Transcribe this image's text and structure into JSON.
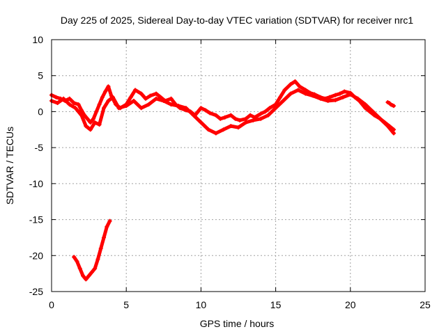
{
  "chart_data": {
    "type": "scatter",
    "title": "Day 225 of 2025, Sidereal Day-to-day VTEC variation (SDTVAR) for receiver nrc1",
    "xlabel": "GPS time / hours",
    "ylabel": "SDTVAR / TECUs",
    "xlim": [
      0,
      25
    ],
    "ylim": [
      -25,
      10
    ],
    "xticks": [
      "0",
      "5",
      "10",
      "15",
      "20",
      "25"
    ],
    "yticks": [
      "10",
      "5",
      "0",
      "-5",
      "-10",
      "-15",
      "-20",
      "-25"
    ],
    "grid": true,
    "marker": "+",
    "color": "#ff0000",
    "series": [
      {
        "name": "trace-upper",
        "x": [
          0.0,
          0.3,
          0.6,
          0.9,
          1.2,
          1.5,
          1.8,
          2.0,
          2.2,
          2.4,
          2.6,
          2.8,
          3.0,
          3.2,
          3.4,
          3.6,
          3.8,
          4.0,
          4.3,
          4.6,
          5.0,
          5.3,
          5.6,
          6.0,
          6.3,
          6.6,
          7.0,
          7.3,
          7.6,
          8.0,
          8.3,
          8.6,
          9.0,
          9.3,
          9.6,
          10.0,
          10.3,
          10.6,
          11.0,
          11.3,
          11.6,
          12.0,
          12.3,
          12.6,
          13.0,
          13.3,
          13.6,
          14.0,
          14.3,
          14.6,
          15.0,
          15.3,
          15.6,
          16.0,
          16.3,
          16.6,
          17.0,
          17.3,
          17.6,
          18.0,
          18.3,
          18.6,
          19.0,
          19.3,
          19.6,
          20.0,
          20.3,
          20.6,
          21.0,
          21.3,
          21.6,
          22.0,
          22.3,
          22.6,
          22.9
        ],
        "y": [
          2.3,
          2.0,
          1.8,
          1.5,
          1.8,
          1.2,
          1.0,
          0.2,
          -0.5,
          -1.0,
          -1.5,
          -1.0,
          0.0,
          1.0,
          2.0,
          2.8,
          3.5,
          2.2,
          1.0,
          0.5,
          1.0,
          2.0,
          3.0,
          2.5,
          1.8,
          2.2,
          2.5,
          2.0,
          1.5,
          1.8,
          1.0,
          0.5,
          0.2,
          0.0,
          -0.5,
          0.5,
          0.2,
          -0.2,
          -0.5,
          -1.0,
          -0.8,
          -0.5,
          -1.0,
          -1.2,
          -1.0,
          -0.5,
          -0.8,
          -0.3,
          0.0,
          0.5,
          1.0,
          2.0,
          3.0,
          3.8,
          4.2,
          3.5,
          3.0,
          2.6,
          2.4,
          2.0,
          1.8,
          2.0,
          2.3,
          2.5,
          2.8,
          2.6,
          2.0,
          1.5,
          0.5,
          0.0,
          -0.5,
          -1.0,
          -1.5,
          -2.0,
          -2.5
        ]
      },
      {
        "name": "trace-lower",
        "x": [
          0.0,
          0.4,
          0.8,
          1.2,
          1.6,
          2.0,
          2.3,
          2.6,
          2.9,
          3.2,
          3.5,
          3.8,
          4.1,
          4.5,
          5.0,
          5.5,
          6.0,
          6.5,
          7.0,
          7.5,
          8.0,
          8.5,
          9.0,
          9.5,
          10.0,
          10.5,
          11.0,
          11.5,
          12.0,
          12.5,
          13.0,
          13.5,
          14.0,
          14.5,
          15.0,
          15.5,
          16.0,
          16.5,
          17.0,
          17.5,
          18.0,
          18.5,
          19.0,
          19.5,
          20.0,
          20.5,
          21.0,
          21.5,
          22.0,
          22.5,
          22.9
        ],
        "y": [
          1.5,
          1.2,
          1.8,
          1.0,
          0.5,
          -0.5,
          -2.0,
          -2.5,
          -1.5,
          -1.8,
          0.5,
          1.5,
          2.0,
          0.5,
          0.8,
          1.5,
          0.5,
          1.0,
          1.8,
          1.5,
          1.0,
          0.8,
          0.5,
          -0.5,
          -1.5,
          -2.5,
          -3.0,
          -2.5,
          -2.0,
          -2.2,
          -1.5,
          -1.2,
          -1.0,
          -0.5,
          0.5,
          1.5,
          2.5,
          3.0,
          2.5,
          2.2,
          1.8,
          1.5,
          1.6,
          2.0,
          2.4,
          1.8,
          1.0,
          0.0,
          -1.0,
          -2.0,
          -3.0
        ]
      },
      {
        "name": "trace-early-dip",
        "x": [
          1.5,
          1.7,
          1.9,
          2.1,
          2.3,
          2.5,
          2.7,
          2.9,
          3.1,
          3.3,
          3.5,
          3.7,
          3.9
        ],
        "y": [
          -20.2,
          -20.8,
          -21.8,
          -22.8,
          -23.3,
          -22.8,
          -22.3,
          -21.8,
          -20.5,
          -19.0,
          -17.5,
          -16.0,
          -15.2
        ]
      },
      {
        "name": "trace-end-fragment",
        "x": [
          22.5,
          22.6,
          22.7,
          22.8,
          22.9
        ],
        "y": [
          1.3,
          1.2,
          1.0,
          0.9,
          0.8
        ]
      }
    ]
  }
}
